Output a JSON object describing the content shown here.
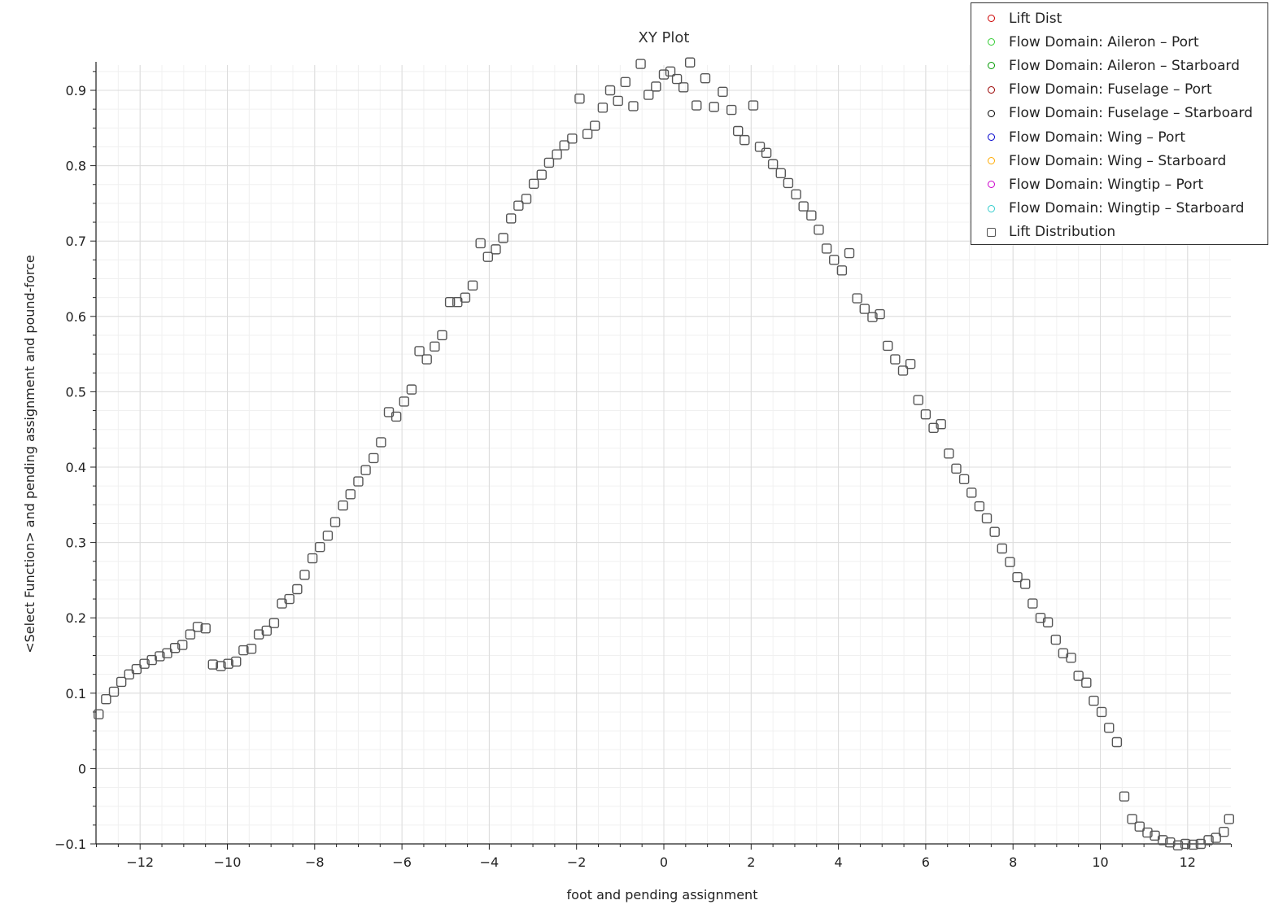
{
  "chart_data": {
    "type": "scatter",
    "title": "XY Plot",
    "xlabel": "foot and pending assignment",
    "ylabel": "<Select Function> and pending assignment and pound-force",
    "xlim": [
      -13,
      13
    ],
    "ylim": [
      -0.1,
      0.94
    ],
    "xticks": [
      -12,
      -10,
      -8,
      -6,
      -4,
      -2,
      0,
      2,
      4,
      6,
      8,
      10,
      12
    ],
    "yticks": [
      -0.1,
      0,
      0.1,
      0.2,
      0.3,
      0.4,
      0.5,
      0.6,
      0.7,
      0.8,
      0.9
    ],
    "xtick_labels": [
      "−12",
      "−10",
      "−8",
      "−6",
      "−4",
      "−2",
      "0",
      "2",
      "4",
      "6",
      "8",
      "10",
      "12"
    ],
    "ytick_labels": [
      "−0.1",
      "0",
      "0.1",
      "0.2",
      "0.3",
      "0.4",
      "0.5",
      "0.6",
      "0.7",
      "0.8",
      "0.9"
    ],
    "grid": true,
    "legend_position": "top-right",
    "legend": [
      {
        "name": "Lift Dist",
        "color": "#cc0000",
        "marker": "circle"
      },
      {
        "name": "Flow Domain: Aileron - Port",
        "color": "#33cc33",
        "marker": "circle"
      },
      {
        "name": "Flow Domain: Aileron - Starboard",
        "color": "#009900",
        "marker": "circle"
      },
      {
        "name": "Flow Domain: Fuselage - Port",
        "color": "#990000",
        "marker": "circle"
      },
      {
        "name": "Flow Domain: Fuselage - Starboard",
        "color": "#000000",
        "marker": "circle"
      },
      {
        "name": "Flow Domain: Wing - Port",
        "color": "#0000cc",
        "marker": "circle"
      },
      {
        "name": "Flow Domain: Wing - Starboard",
        "color": "#ffaa00",
        "marker": "circle"
      },
      {
        "name": "Flow Domain: Wingtip - Port",
        "color": "#cc00cc",
        "marker": "circle"
      },
      {
        "name": "Flow Domain: Wingtip - Starboard",
        "color": "#33cccc",
        "marker": "circle"
      },
      {
        "name": "Lift Distribution",
        "color": "#555555",
        "marker": "square"
      }
    ],
    "series": [
      {
        "name": "Lift Distribution",
        "color": "#555555",
        "points": [
          [
            -12.95,
            0.072
          ],
          [
            -12.78,
            0.092
          ],
          [
            -12.6,
            0.102
          ],
          [
            -12.43,
            0.115
          ],
          [
            -12.25,
            0.125
          ],
          [
            -12.08,
            0.132
          ],
          [
            -11.9,
            0.139
          ],
          [
            -11.73,
            0.144
          ],
          [
            -11.55,
            0.149
          ],
          [
            -11.38,
            0.153
          ],
          [
            -11.2,
            0.16
          ],
          [
            -11.03,
            0.164
          ],
          [
            -10.85,
            0.178
          ],
          [
            -10.68,
            0.188
          ],
          [
            -10.5,
            0.186
          ],
          [
            -10.33,
            0.138
          ],
          [
            -10.15,
            0.136
          ],
          [
            -9.98,
            0.139
          ],
          [
            -9.8,
            0.142
          ],
          [
            -9.63,
            0.157
          ],
          [
            -9.45,
            0.159
          ],
          [
            -9.28,
            0.178
          ],
          [
            -9.1,
            0.183
          ],
          [
            -8.93,
            0.193
          ],
          [
            -8.75,
            0.219
          ],
          [
            -8.58,
            0.225
          ],
          [
            -8.4,
            0.238
          ],
          [
            -8.23,
            0.257
          ],
          [
            -8.05,
            0.279
          ],
          [
            -7.88,
            0.294
          ],
          [
            -7.7,
            0.309
          ],
          [
            -7.53,
            0.327
          ],
          [
            -7.35,
            0.349
          ],
          [
            -7.18,
            0.364
          ],
          [
            -7.0,
            0.381
          ],
          [
            -6.83,
            0.396
          ],
          [
            -6.65,
            0.412
          ],
          [
            -6.48,
            0.433
          ],
          [
            -6.3,
            0.473
          ],
          [
            -6.13,
            0.467
          ],
          [
            -5.95,
            0.487
          ],
          [
            -5.78,
            0.503
          ],
          [
            -5.6,
            0.554
          ],
          [
            -5.43,
            0.543
          ],
          [
            -5.25,
            0.56
          ],
          [
            -5.08,
            0.575
          ],
          [
            -4.9,
            0.619
          ],
          [
            -4.73,
            0.619
          ],
          [
            -4.55,
            0.625
          ],
          [
            -4.38,
            0.641
          ],
          [
            -4.2,
            0.697
          ],
          [
            -4.03,
            0.679
          ],
          [
            -3.85,
            0.689
          ],
          [
            -3.68,
            0.704
          ],
          [
            -3.5,
            0.73
          ],
          [
            -3.33,
            0.747
          ],
          [
            -3.15,
            0.756
          ],
          [
            -2.98,
            0.776
          ],
          [
            -2.8,
            0.788
          ],
          [
            -2.63,
            0.804
          ],
          [
            -2.45,
            0.815
          ],
          [
            -2.28,
            0.827
          ],
          [
            -2.1,
            0.836
          ],
          [
            -1.93,
            0.889
          ],
          [
            -1.75,
            0.842
          ],
          [
            -1.58,
            0.853
          ],
          [
            -1.4,
            0.877
          ],
          [
            -1.23,
            0.9
          ],
          [
            -1.05,
            0.886
          ],
          [
            -0.88,
            0.911
          ],
          [
            -0.7,
            0.879
          ],
          [
            -0.53,
            0.935
          ],
          [
            -0.35,
            0.894
          ],
          [
            -0.18,
            0.905
          ],
          [
            0.0,
            0.921
          ],
          [
            0.15,
            0.925
          ],
          [
            0.3,
            0.915
          ],
          [
            0.45,
            0.904
          ],
          [
            0.6,
            0.937
          ],
          [
            0.75,
            0.88
          ],
          [
            0.95,
            0.916
          ],
          [
            1.15,
            0.878
          ],
          [
            1.35,
            0.898
          ],
          [
            1.55,
            0.874
          ],
          [
            1.7,
            0.846
          ],
          [
            1.85,
            0.834
          ],
          [
            2.05,
            0.88
          ],
          [
            2.2,
            0.825
          ],
          [
            2.35,
            0.817
          ],
          [
            2.5,
            0.802
          ],
          [
            2.68,
            0.79
          ],
          [
            2.85,
            0.777
          ],
          [
            3.03,
            0.762
          ],
          [
            3.2,
            0.746
          ],
          [
            3.38,
            0.734
          ],
          [
            3.55,
            0.715
          ],
          [
            3.73,
            0.69
          ],
          [
            3.9,
            0.675
          ],
          [
            4.08,
            0.661
          ],
          [
            4.25,
            0.684
          ],
          [
            4.43,
            0.624
          ],
          [
            4.6,
            0.61
          ],
          [
            4.78,
            0.599
          ],
          [
            4.95,
            0.603
          ],
          [
            5.13,
            0.561
          ],
          [
            5.3,
            0.543
          ],
          [
            5.48,
            0.528
          ],
          [
            5.65,
            0.537
          ],
          [
            5.83,
            0.489
          ],
          [
            6.0,
            0.47
          ],
          [
            6.18,
            0.452
          ],
          [
            6.35,
            0.457
          ],
          [
            6.53,
            0.418
          ],
          [
            6.7,
            0.398
          ],
          [
            6.88,
            0.384
          ],
          [
            7.05,
            0.366
          ],
          [
            7.23,
            0.348
          ],
          [
            7.4,
            0.332
          ],
          [
            7.58,
            0.314
          ],
          [
            7.75,
            0.292
          ],
          [
            7.93,
            0.274
          ],
          [
            8.1,
            0.254
          ],
          [
            8.28,
            0.245
          ],
          [
            8.45,
            0.219
          ],
          [
            8.63,
            0.2
          ],
          [
            8.8,
            0.194
          ],
          [
            8.98,
            0.171
          ],
          [
            9.15,
            0.153
          ],
          [
            9.33,
            0.147
          ],
          [
            9.5,
            0.123
          ],
          [
            9.68,
            0.114
          ],
          [
            9.85,
            0.09
          ],
          [
            10.03,
            0.075
          ],
          [
            10.2,
            0.054
          ],
          [
            10.38,
            0.035
          ],
          [
            10.55,
            -0.037
          ],
          [
            10.73,
            -0.067
          ],
          [
            10.9,
            -0.077
          ],
          [
            11.08,
            -0.085
          ],
          [
            11.25,
            -0.089
          ],
          [
            11.43,
            -0.095
          ],
          [
            11.6,
            -0.098
          ],
          [
            11.78,
            -0.102
          ],
          [
            11.95,
            -0.1
          ],
          [
            12.13,
            -0.101
          ],
          [
            12.3,
            -0.1
          ],
          [
            12.48,
            -0.095
          ],
          [
            12.65,
            -0.092
          ],
          [
            12.83,
            -0.084
          ],
          [
            12.95,
            -0.067
          ]
        ]
      }
    ]
  }
}
